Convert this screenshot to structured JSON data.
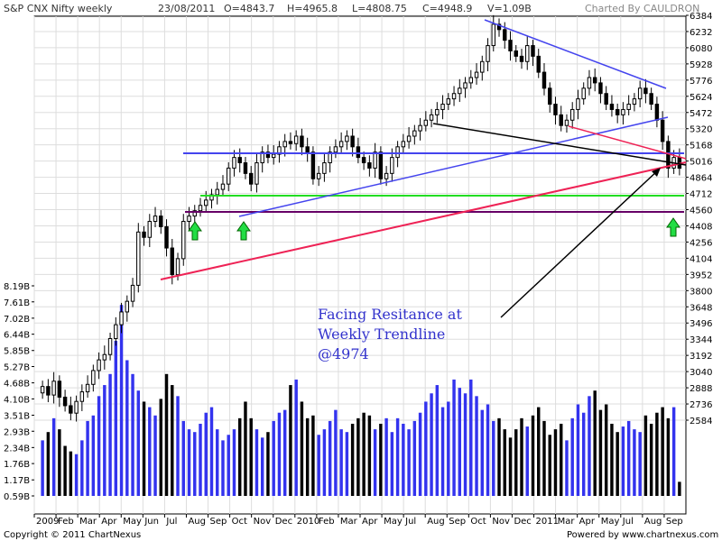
{
  "header": {
    "title": "S&P CNX Nifty weekly",
    "date": "23/08/2011",
    "open": "O=4843.7",
    "high": "H=4965.8",
    "low": "L=4808.75",
    "close": "C=4948.9",
    "volume": "V=1.09B",
    "credit": "Charted By CAULDRON"
  },
  "footer": {
    "copyright": "Copyright © 2011 ChartNexus",
    "powered": "Powered by www.chartnexus.com"
  },
  "annotation": {
    "lines": [
      "Facing Resitance at",
      "Weekly Trendline",
      "@4974"
    ]
  },
  "colors": {
    "grid": "#dddddd",
    "axis": "#000000",
    "candle": "#000000",
    "volume_black": "#000000",
    "volume_blue": "#3333ee",
    "blue_line": "#4444ee",
    "red_line": "#ee2255",
    "black_line": "#000000",
    "green_line": "#22dd22",
    "purple_line": "#660066",
    "arrow_green": "#22dd44",
    "annotation_text": "#3333cc"
  },
  "chart_data": {
    "type": "candlestick",
    "title": "S&P CNX Nifty weekly",
    "price_axis": {
      "ticks": [
        6384,
        6232,
        6080,
        5928,
        5776,
        5624,
        5472,
        5320,
        5168,
        5016,
        4864,
        4712,
        4560,
        4408,
        4256,
        4104,
        3952,
        3800,
        3648,
        3496,
        3344,
        3192,
        3040,
        2888,
        2736,
        2584
      ],
      "range": [
        2584,
        6384
      ]
    },
    "volume_axis": {
      "ticks": [
        "8.19B",
        "7.61B",
        "7.02B",
        "6.44B",
        "5.85B",
        "5.27B",
        "4.68B",
        "4.10B",
        "3.51B",
        "2.93B",
        "2.34B",
        "1.76B",
        "1.17B",
        "0.59B"
      ],
      "range": [
        0.59,
        8.19
      ]
    },
    "x_labels": [
      "2009",
      "Feb",
      "Mar",
      "Apr",
      "May",
      "Jun",
      "Jul",
      "Aug",
      "Sep",
      "Oct",
      "Nov",
      "Dec",
      "2010",
      "Feb",
      "Mar",
      "Apr",
      "May",
      "Jul",
      "Aug",
      "Sep",
      "Oct",
      "Nov",
      "Dec",
      "2011",
      "Mar",
      "Apr",
      "May",
      "Jul",
      "Aug",
      "Sep"
    ],
    "close_path": [
      2900,
      2820,
      2950,
      2800,
      2720,
      2650,
      2760,
      2850,
      2920,
      3050,
      3150,
      3200,
      3350,
      3480,
      3600,
      3700,
      3850,
      4350,
      4300,
      4450,
      4500,
      4400,
      4200,
      3950,
      4100,
      4450,
      4500,
      4550,
      4600,
      4650,
      4700,
      4750,
      4800,
      4950,
      5050,
      5000,
      4900,
      4800,
      5000,
      5100,
      5050,
      5080,
      5150,
      5200,
      5180,
      5250,
      5150,
      5100,
      4850,
      4900,
      5000,
      5100,
      5150,
      5200,
      5250,
      5150,
      5050,
      5000,
      4950,
      5100,
      4850,
      4900,
      5050,
      5150,
      5200,
      5250,
      5300,
      5350,
      5400,
      5450,
      5500,
      5550,
      5600,
      5650,
      5700,
      5750,
      5800,
      5850,
      5950,
      6100,
      6300,
      6250,
      6150,
      6050,
      6000,
      5950,
      6100,
      6000,
      5850,
      5700,
      5550,
      5450,
      5350,
      5400,
      5500,
      5600,
      5700,
      5800,
      5750,
      5650,
      5550,
      5500,
      5450,
      5500,
      5550,
      5600,
      5700,
      5650,
      5550,
      5400,
      5200,
      4950,
      5050,
      4949
    ],
    "volume_path": [
      2.6,
      2.9,
      3.4,
      3.0,
      2.4,
      2.2,
      2.1,
      2.6,
      3.3,
      3.5,
      4.2,
      4.6,
      5.0,
      6.2,
      7.5,
      5.5,
      5.0,
      4.4,
      4.0,
      3.8,
      3.5,
      4.1,
      5.0,
      4.6,
      4.2,
      3.3,
      3.0,
      2.9,
      3.2,
      3.6,
      3.8,
      3.0,
      2.6,
      2.8,
      3.0,
      3.4,
      4.0,
      3.4,
      3.0,
      2.7,
      2.9,
      3.3,
      3.6,
      3.7,
      4.6,
      4.8,
      4.0,
      3.4,
      3.5,
      2.8,
      3.0,
      3.3,
      3.7,
      3.0,
      2.9,
      3.2,
      3.4,
      3.6,
      3.5,
      3.0,
      3.2,
      3.4,
      2.9,
      3.4,
      3.2,
      3.0,
      3.3,
      3.6,
      4.0,
      4.3,
      4.6,
      3.8,
      4.0,
      4.8,
      4.5,
      4.3,
      4.8,
      4.2,
      3.7,
      3.9,
      3.3,
      3.4,
      3.0,
      2.7,
      3.0,
      3.4,
      3.1,
      3.5,
      3.8,
      3.3,
      2.8,
      3.0,
      3.2,
      2.6,
      3.4,
      3.9,
      3.6,
      4.2,
      4.4,
      3.7,
      3.9,
      3.2,
      2.9,
      3.1,
      3.3,
      3.0,
      2.9,
      3.5,
      3.2,
      3.6,
      3.8,
      3.4,
      3.8,
      1.1
    ]
  }
}
